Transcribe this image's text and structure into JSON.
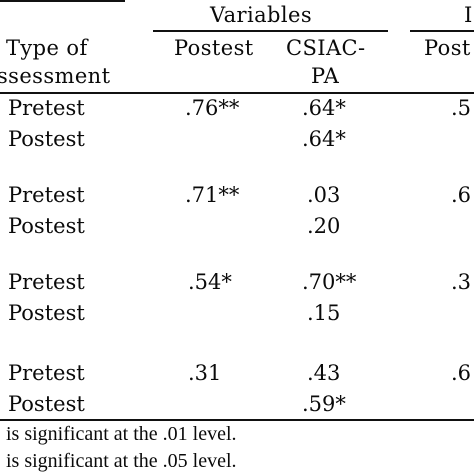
{
  "header": {
    "group_label": "Variables",
    "group_label_right_fragment": "I",
    "type_label_line1": "Type of",
    "type_label_line2": "ssessment",
    "col_postest": "Postest",
    "col_csiac_line1": "CSIAC-",
    "col_csiac_line2": "PA",
    "col_right_fragment": "Post"
  },
  "rows": [
    {
      "type": "Pretest",
      "postest": ".76**",
      "csiac": ".64*",
      "right": ".5"
    },
    {
      "type": "Postest",
      "postest": "",
      "csiac": ".64*",
      "right": ""
    },
    {
      "type": "Pretest",
      "postest": ".71**",
      "csiac": ".03",
      "right": ".6"
    },
    {
      "type": "Postest",
      "postest": "",
      "csiac": ".20",
      "right": ""
    },
    {
      "type": "Pretest",
      "postest": ".54*",
      "csiac": ".70**",
      "right": ".3"
    },
    {
      "type": "Postest",
      "postest": "",
      "csiac": ".15",
      "right": ""
    },
    {
      "type": "Pretest",
      "postest": ".31",
      "csiac": ".43",
      "right": ".6"
    },
    {
      "type": "Postest",
      "postest": "",
      "csiac": ".59*",
      "right": ""
    }
  ],
  "footnotes": [
    "is significant at the .01 level.",
    "is significant at the .05 level."
  ]
}
